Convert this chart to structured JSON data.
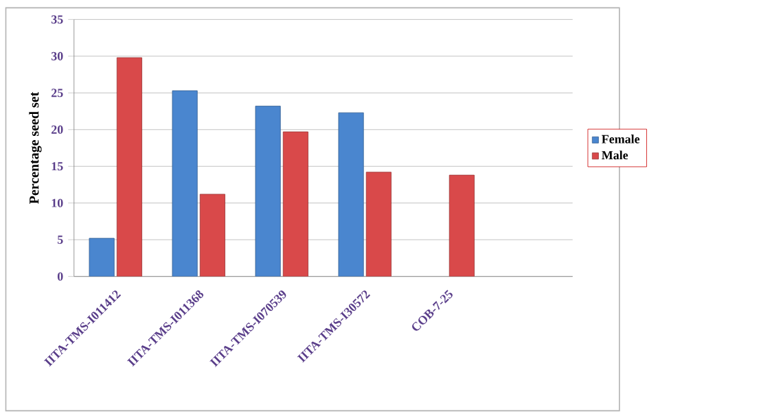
{
  "chart_data": {
    "type": "bar",
    "ylabel": "Percentage seed set",
    "categories": [
      "IITA-TMS-I011412",
      "IITA-TMS-I011368",
      "IITA-TMS-I070539",
      "IITA-TMS-I30572",
      "COB-7-25",
      null
    ],
    "series": [
      {
        "name": "Female",
        "color": "#4a86cf",
        "values": [
          5.2,
          25.3,
          23.2,
          22.3,
          null,
          null
        ]
      },
      {
        "name": "Male",
        "color": "#d9494a",
        "values": [
          29.8,
          11.2,
          19.7,
          14.2,
          13.8,
          null
        ]
      }
    ],
    "ylim": [
      0,
      35
    ],
    "yticks": [
      0,
      5,
      10,
      15,
      20,
      25,
      30,
      35
    ],
    "grid": "y",
    "legend": "right"
  }
}
